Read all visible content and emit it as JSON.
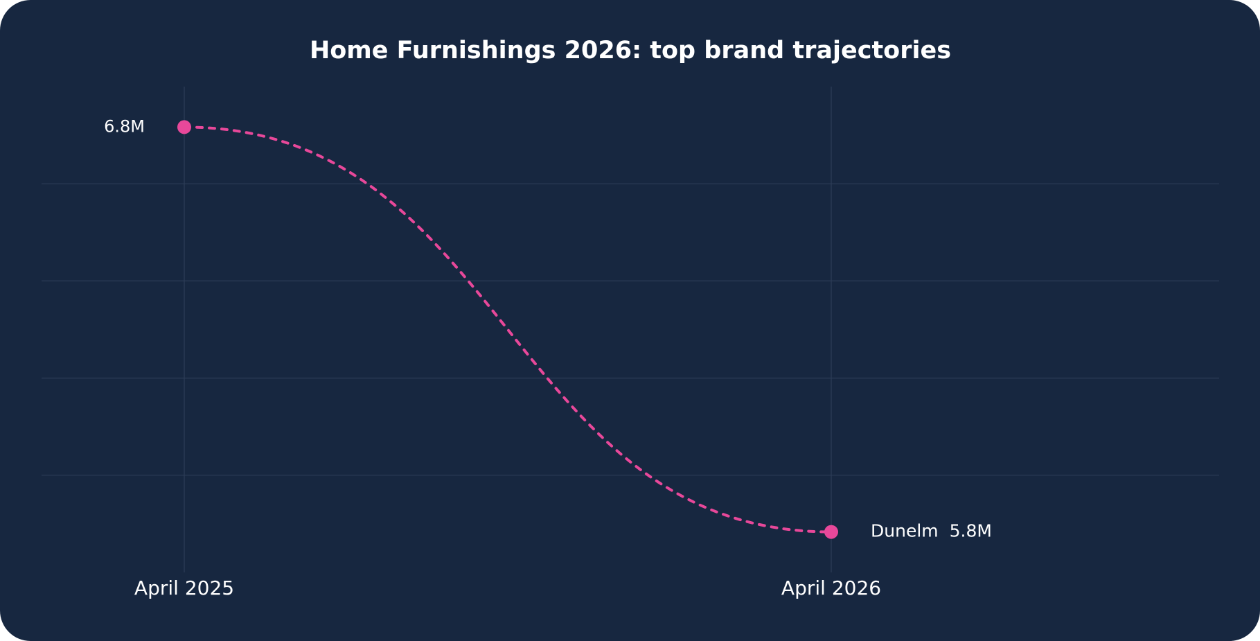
{
  "chart_data": {
    "type": "line",
    "title": "Home Furnishings 2026: top brand trajectories",
    "categories": [
      "April 2025",
      "April 2026"
    ],
    "series": [
      {
        "name": "Dunelm",
        "color": "#e8489a",
        "values": [
          6.8,
          5.8
        ],
        "value_labels": [
          "6.8M",
          "5.8M"
        ]
      }
    ],
    "ylim": [
      5.7,
      6.9
    ],
    "grid": true
  }
}
